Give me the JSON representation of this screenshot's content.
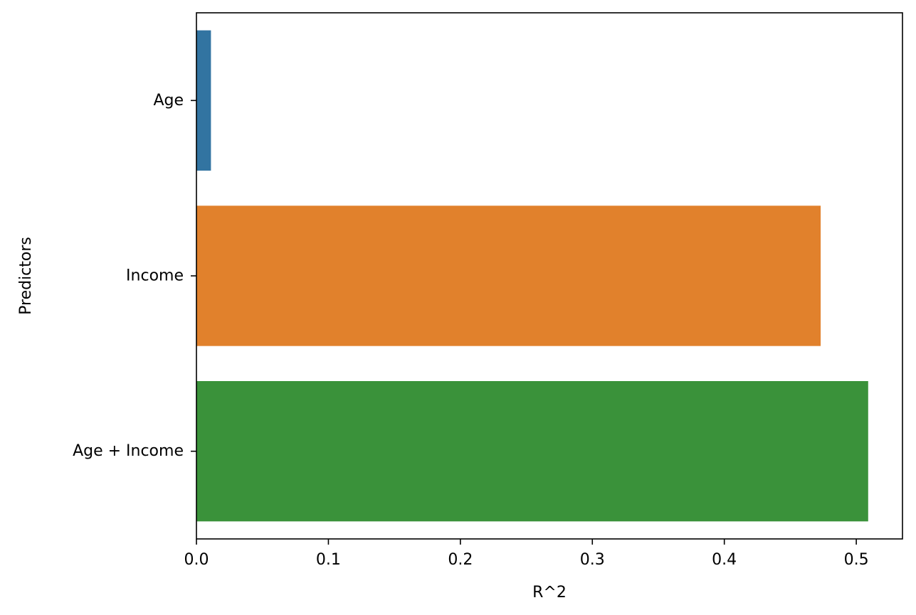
{
  "chart_data": {
    "type": "bar",
    "orientation": "horizontal",
    "categories": [
      "Age",
      "Income",
      "Age + Income"
    ],
    "values": [
      0.011,
      0.473,
      0.509
    ],
    "colors": [
      "#3274a1",
      "#e1812c",
      "#3a923a"
    ],
    "xlabel": "R^2",
    "ylabel": "Predictors",
    "xlim": [
      0,
      0.535
    ],
    "xticks": [
      0.0,
      0.1,
      0.2,
      0.3,
      0.4,
      0.5
    ],
    "xtick_labels": [
      "0.0",
      "0.1",
      "0.2",
      "0.3",
      "0.4",
      "0.5"
    ],
    "grid": false,
    "legend": "none"
  }
}
